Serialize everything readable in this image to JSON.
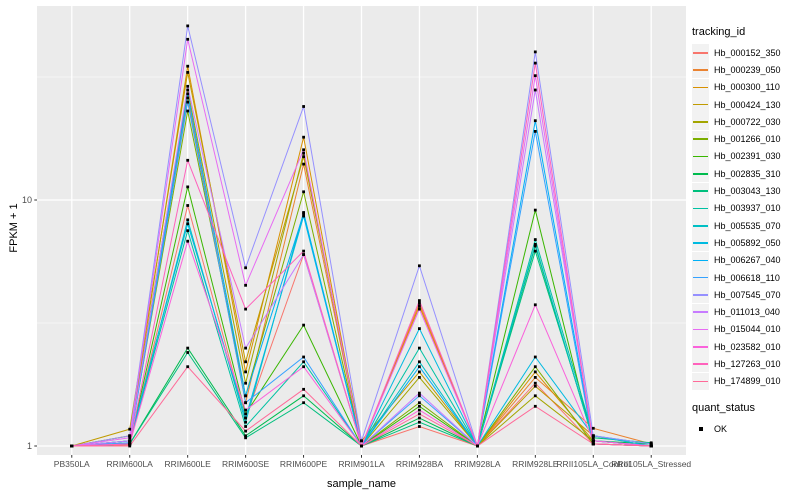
{
  "chart_data": {
    "type": "line",
    "title": "",
    "xlabel": "sample_name",
    "ylabel": "FPKM + 1",
    "y_scale": "log10",
    "ylim": [
      0.92,
      61
    ],
    "y_ticks": [
      {
        "label": "1",
        "value": 1
      },
      {
        "label": "10",
        "value": 10
      }
    ],
    "y_minor_values": [
      3.162,
      31.62
    ],
    "grid": true,
    "legend_position": "right",
    "point_marker": "filled-square",
    "categories": [
      "PB350LA",
      "RRIM600LA",
      "RRIM600LE",
      "RRIM600SE",
      "RRIM600PE",
      "RRIM901LA",
      "RRIM928BA",
      "RRIM928LA",
      "RRIM928LE",
      "RRII105LA_Control",
      "RRII105LA_Stressed"
    ],
    "color_legend_title": "tracking_id",
    "shape_legend_title": "quant_status",
    "shape_legend_items": [
      {
        "label": "OK",
        "marker": "filled-square",
        "color": "#000000"
      }
    ],
    "series": [
      {
        "name": "Hb_000152_350",
        "color": "#F8766D",
        "values": [
          1,
          1.01,
          9.5,
          1.3,
          6.0,
          1,
          1.2,
          1,
          1.8,
          1.02,
          1
        ]
      },
      {
        "name": "Hb_000239_050",
        "color": "#EA8331",
        "values": [
          1,
          1.05,
          26,
          1.5,
          14,
          1,
          3.8,
          1,
          1.9,
          1.18,
          1.02
        ]
      },
      {
        "name": "Hb_000300_110",
        "color": "#D89000",
        "values": [
          1,
          1.1,
          35,
          2.0,
          18,
          1,
          3.7,
          1,
          2.0,
          1.05,
          1
        ]
      },
      {
        "name": "Hb_000424_130",
        "color": "#C09B00",
        "values": [
          1,
          1.17,
          33,
          2.2,
          15,
          1.05,
          2.0,
          1,
          1.75,
          1.1,
          1
        ]
      },
      {
        "name": "Hb_000722_030",
        "color": "#A3A500",
        "values": [
          1,
          1.1,
          28,
          1.8,
          15.5,
          1,
          1.9,
          1,
          1.6,
          1.05,
          1
        ]
      },
      {
        "name": "Hb_001266_010",
        "color": "#7CAE00",
        "values": [
          1,
          1.05,
          23,
          1.6,
          10.8,
          1,
          1.5,
          1,
          2.1,
          1.02,
          1
        ]
      },
      {
        "name": "Hb_002391_030",
        "color": "#39B600",
        "values": [
          1,
          1.02,
          11.3,
          1.35,
          3.1,
          1,
          1.45,
          1,
          9.1,
          1.02,
          1
        ]
      },
      {
        "name": "Hb_002835_310",
        "color": "#00BB4E",
        "values": [
          1,
          1.02,
          2.5,
          1.1,
          1.6,
          1,
          1.3,
          1,
          6.5,
          1.05,
          1.02
        ]
      },
      {
        "name": "Hb_003043_130",
        "color": "#00BF7D",
        "values": [
          1,
          1.02,
          2.4,
          1.08,
          1.5,
          1,
          1.25,
          1,
          6.2,
          1.08,
          1.03
        ]
      },
      {
        "name": "Hb_003937_010",
        "color": "#00C1A3",
        "values": [
          1,
          1.03,
          7.5,
          1.2,
          2.2,
          1,
          2.5,
          1,
          6.9,
          1.1,
          1.02
        ]
      },
      {
        "name": "Hb_005535_070",
        "color": "#00BFC4",
        "values": [
          1,
          1.02,
          8.3,
          1.25,
          8.9,
          1,
          2.2,
          1,
          6.6,
          1.05,
          1
        ]
      },
      {
        "name": "Hb_005892_050",
        "color": "#00BAE0",
        "values": [
          1,
          1.05,
          8.0,
          1.3,
          8.6,
          1,
          3.0,
          1,
          2.3,
          1.1,
          1
        ]
      },
      {
        "name": "Hb_006267_040",
        "color": "#00B0F6",
        "values": [
          1,
          1.05,
          27,
          1.6,
          8.8,
          1,
          2.1,
          1,
          21,
          1.05,
          1
        ]
      },
      {
        "name": "Hb_006618_110",
        "color": "#35A2FF",
        "values": [
          1,
          1.03,
          25,
          1.5,
          2.3,
          1,
          1.6,
          1,
          19,
          1.02,
          1
        ]
      },
      {
        "name": "Hb_007545_070",
        "color": "#9590FF",
        "values": [
          1,
          1.1,
          51,
          5.3,
          24,
          1.05,
          5.4,
          1,
          40,
          1.1,
          1.02
        ]
      },
      {
        "name": "Hb_011013_040",
        "color": "#C77CFF",
        "values": [
          1,
          1.05,
          29,
          2.5,
          6.0,
          1,
          1.64,
          1,
          28,
          1.05,
          1
        ]
      },
      {
        "name": "Hb_015044_010",
        "color": "#E76BF3",
        "values": [
          1,
          1.08,
          45,
          4.5,
          16,
          1,
          3.6,
          1,
          32,
          1.02,
          1
        ]
      },
      {
        "name": "Hb_023582_010",
        "color": "#FA62DB",
        "values": [
          1,
          1.02,
          6.8,
          1.4,
          2.1,
          1,
          1.4,
          1,
          3.75,
          1.05,
          1
        ]
      },
      {
        "name": "Hb_127263_010",
        "color": "#FF62BC",
        "values": [
          1,
          1.02,
          14.5,
          3.6,
          6.2,
          1,
          3.9,
          1,
          36,
          1.02,
          1
        ]
      },
      {
        "name": "Hb_174899_010",
        "color": "#FF6A98",
        "values": [
          1,
          1.0,
          2.1,
          1.15,
          1.7,
          1,
          1.35,
          1,
          1.45,
          1.02,
          1
        ]
      }
    ],
    "colors": {
      "panel_background": "#EBEBEB",
      "grid": "#FFFFFF",
      "tick": "#333333",
      "tick_label": "#4D4D4D",
      "axis_title": "#000000",
      "point": "#000000",
      "legend_key_background": "#F2F2F2"
    }
  }
}
